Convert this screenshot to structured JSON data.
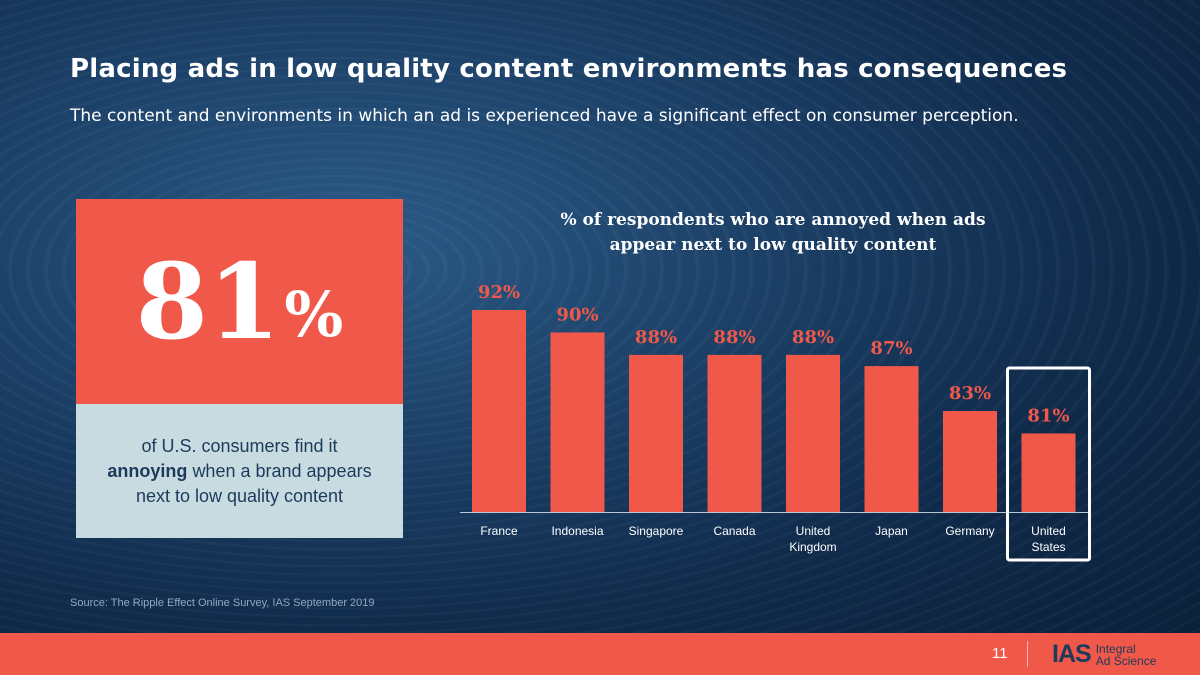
{
  "slide": {
    "title": "Placing ads in low quality content environments has consequences",
    "subtitle": "The content and environments in which an ad is experienced have a significant effect on consumer perception.",
    "source": "Source: The Ripple Effect Online Survey, IAS September 2019",
    "page_number": "11"
  },
  "stat": {
    "number": "81",
    "percent_sign": "%",
    "text_before": "of U.S. consumers find it",
    "text_bold": "annoying",
    "text_after": "when a brand appears next to low quality content"
  },
  "logo": {
    "mark": "IAS",
    "line1": "Integral",
    "line2": "Ad Science"
  },
  "colors": {
    "accent": "#f0584a",
    "light_panel": "#c8dbe0",
    "navy": "#1c3a5a"
  },
  "chart_data": {
    "type": "bar",
    "title": "% of respondents who are annoyed when ads appear next to low quality content",
    "title_lines": [
      "% of respondents who are annoyed when ads",
      "appear next to low quality content"
    ],
    "categories": [
      "France",
      "Indonesia",
      "Singapore",
      "Canada",
      "United Kingdom",
      "Japan",
      "Germany",
      "United States"
    ],
    "category_lines": [
      [
        "France"
      ],
      [
        "Indonesia"
      ],
      [
        "Singapore"
      ],
      [
        "Canada"
      ],
      [
        "United",
        "Kingdom"
      ],
      [
        "Japan"
      ],
      [
        "Germany"
      ],
      [
        "United",
        "States"
      ]
    ],
    "values": [
      92,
      90,
      88,
      88,
      88,
      87,
      83,
      81
    ],
    "data_labels": [
      "92%",
      "90%",
      "88%",
      "88%",
      "88%",
      "87%",
      "83%",
      "81%"
    ],
    "highlight": "United States",
    "ylim": [
      74,
      92
    ],
    "grid": false,
    "legend": "none"
  }
}
